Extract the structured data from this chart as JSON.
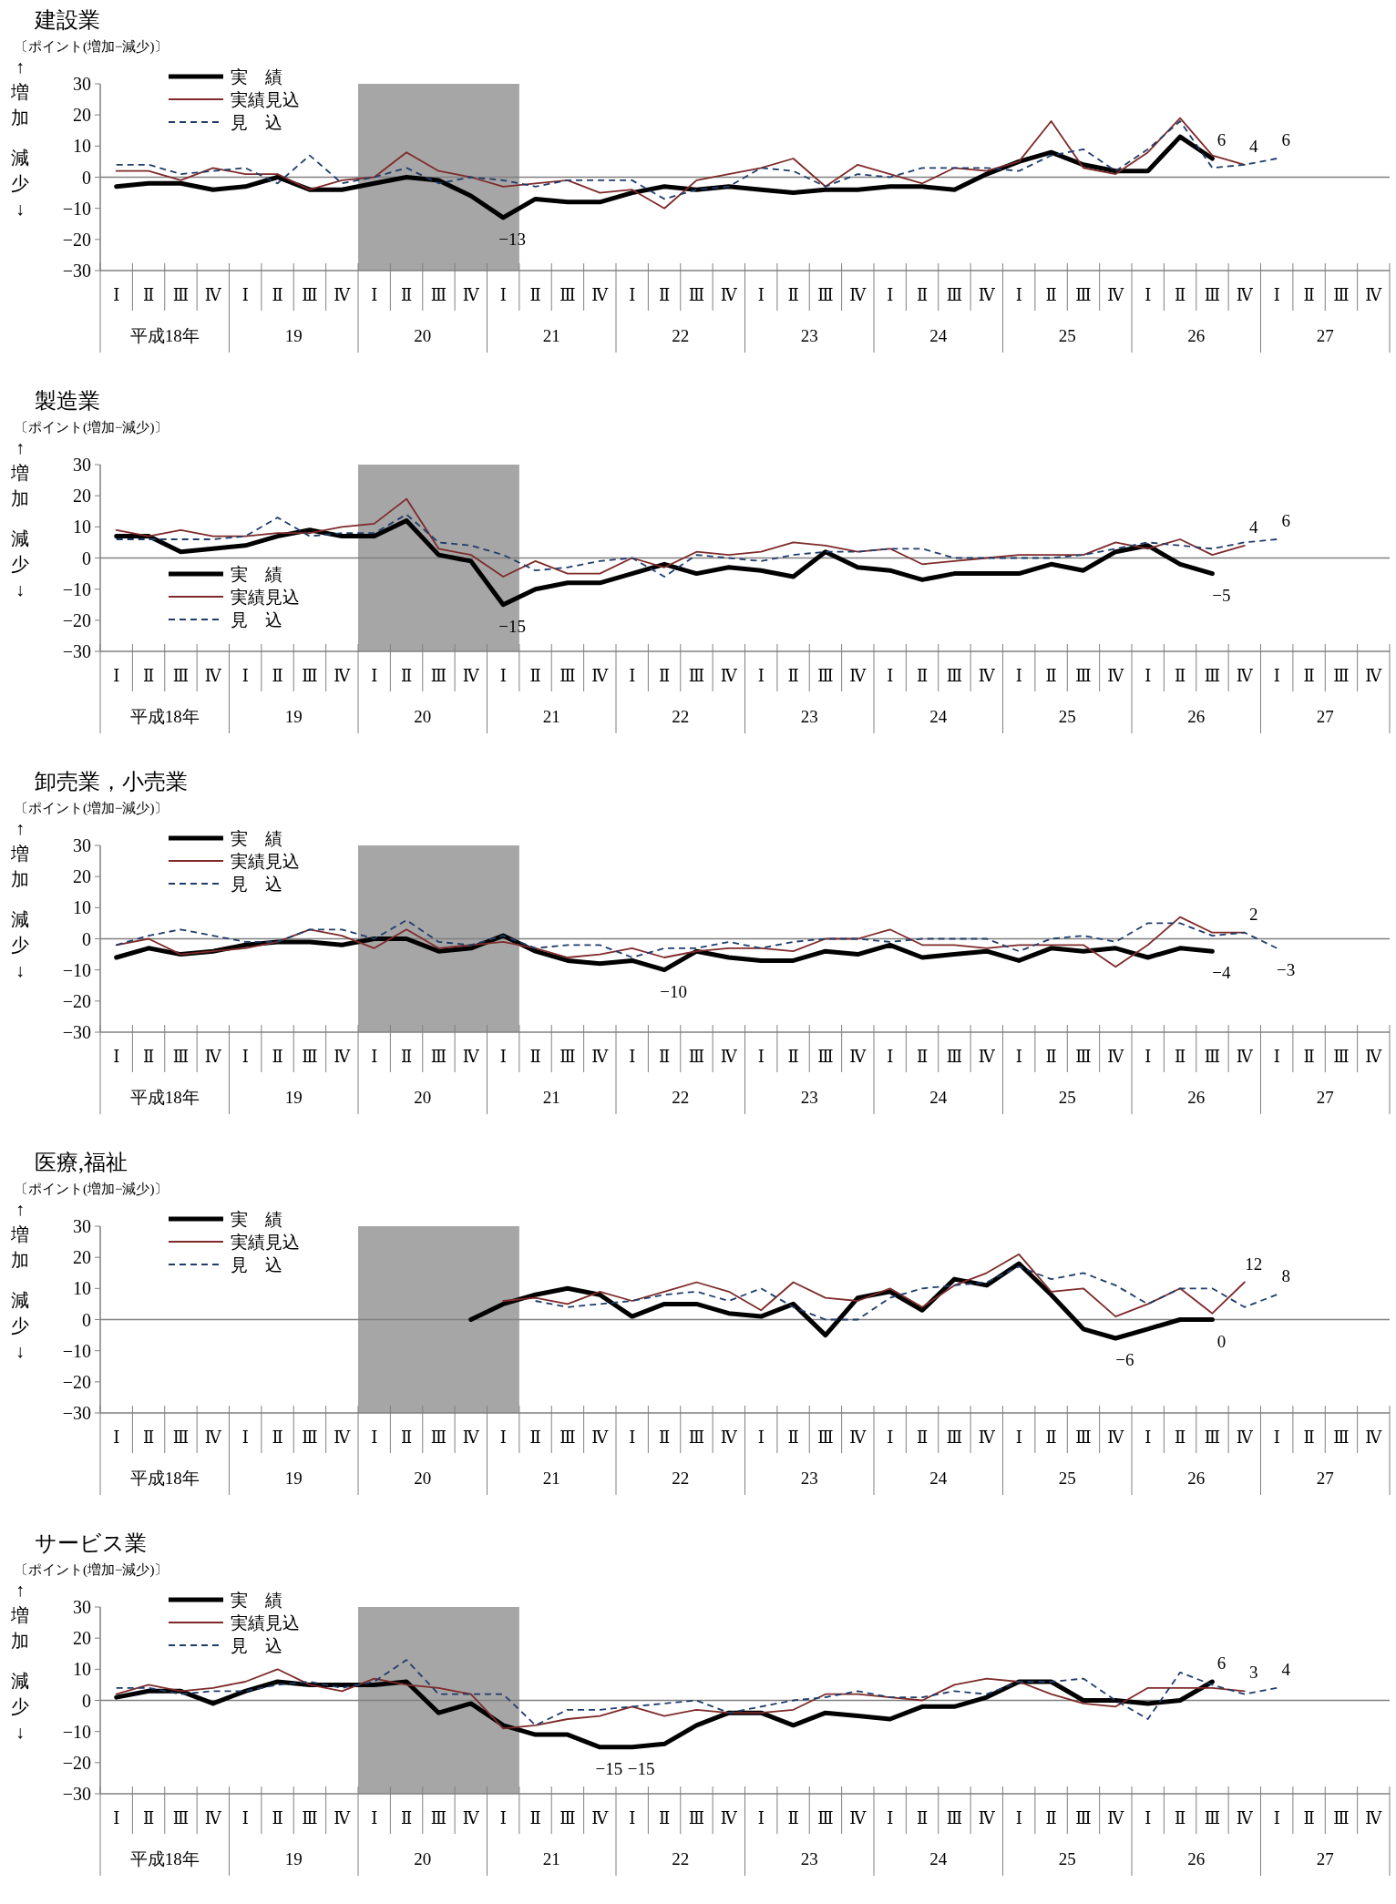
{
  "chart_data": [
    {
      "type": "line",
      "title": "建設業",
      "subtitle": "〔ポイント(増加−減少)〕",
      "categories": [
        "Ⅰ",
        "Ⅱ",
        "Ⅲ",
        "Ⅳ",
        "Ⅰ",
        "Ⅱ",
        "Ⅲ",
        "Ⅳ",
        "Ⅰ",
        "Ⅱ",
        "Ⅲ",
        "Ⅳ",
        "Ⅰ",
        "Ⅱ",
        "Ⅲ",
        "Ⅳ",
        "Ⅰ",
        "Ⅱ",
        "Ⅲ",
        "Ⅳ",
        "Ⅰ",
        "Ⅱ",
        "Ⅲ",
        "Ⅳ",
        "Ⅰ",
        "Ⅱ",
        "Ⅲ",
        "Ⅳ",
        "Ⅰ",
        "Ⅱ",
        "Ⅲ",
        "Ⅳ",
        "Ⅰ",
        "Ⅱ",
        "Ⅲ",
        "Ⅳ",
        "Ⅰ",
        "Ⅱ",
        "Ⅲ",
        "Ⅳ"
      ],
      "ylim": [
        -30,
        30
      ],
      "yticks": [
        -30,
        -20,
        -10,
        0,
        10,
        20,
        30
      ],
      "grid": false,
      "legend": "top left",
      "marker": "none",
      "annotations": [
        "↑増加",
        "減少↓",
        "平成18年",
        "19",
        "20",
        "21",
        "22",
        "23",
        "24",
        "25",
        "26",
        "27"
      ],
      "ref_lines": [
        {
          "axis": "y",
          "value": 0,
          "color": "#808080"
        }
      ],
      "series": [
        {
          "name": "実　績",
          "color": "#000000",
          "line_style": "solid",
          "values": [
            -3,
            -2,
            -2,
            -4,
            -3,
            0,
            -4,
            -4,
            -2,
            0,
            -1,
            -6,
            -13,
            -7,
            -8,
            -8,
            -5,
            -3,
            -4,
            -3,
            -4,
            -5,
            -4,
            -4,
            -3,
            -3,
            -4,
            1,
            5,
            8,
            4,
            2,
            2,
            13,
            6,
            null,
            null,
            null,
            null,
            null
          ],
          "value_labels": [
            null,
            null,
            null,
            null,
            null,
            null,
            null,
            null,
            null,
            null,
            null,
            null,
            "−13",
            null,
            null,
            null,
            null,
            null,
            null,
            null,
            null,
            null,
            null,
            null,
            null,
            null,
            null,
            null,
            null,
            null,
            null,
            null,
            null,
            null,
            "6",
            null,
            null,
            null,
            null,
            null
          ]
        },
        {
          "name": "実績見込",
          "color": "#7f2a2a",
          "line_style": "solid",
          "values": [
            2,
            2,
            -1,
            3,
            1,
            1,
            -4,
            -1,
            0,
            8,
            2,
            0,
            -3,
            -2,
            -1,
            -5,
            -4,
            -10,
            -1,
            1,
            3,
            6,
            -3,
            4,
            1,
            -2,
            3,
            2,
            5,
            18,
            3,
            1,
            8,
            19,
            7,
            4,
            null,
            null,
            null,
            null
          ],
          "value_labels": [
            null,
            null,
            null,
            null,
            null,
            null,
            null,
            null,
            null,
            null,
            null,
            null,
            null,
            null,
            null,
            null,
            null,
            null,
            null,
            null,
            null,
            null,
            null,
            null,
            null,
            null,
            null,
            null,
            null,
            null,
            null,
            null,
            null,
            null,
            null,
            "4",
            null,
            null,
            null,
            null
          ]
        },
        {
          "name": "見　込",
          "color": "#1f3d6b",
          "line_style": "dashed",
          "values": [
            4,
            4,
            1,
            2,
            3,
            -2,
            7,
            -2,
            0,
            3,
            -2,
            0,
            -1,
            -3,
            -1,
            -1,
            -1,
            -7,
            -4,
            -3,
            3,
            2,
            -3,
            1,
            0,
            3,
            3,
            3,
            2,
            7,
            9,
            2,
            9,
            18,
            3,
            4,
            6,
            null,
            null,
            null
          ],
          "value_labels": [
            null,
            null,
            null,
            null,
            null,
            null,
            null,
            null,
            null,
            null,
            null,
            null,
            null,
            null,
            null,
            null,
            null,
            null,
            null,
            null,
            null,
            null,
            null,
            null,
            null,
            null,
            null,
            null,
            null,
            null,
            null,
            null,
            null,
            null,
            null,
            null,
            "6",
            null,
            null,
            null
          ]
        }
      ]
    },
    {
      "type": "line",
      "title": "製造業",
      "subtitle": "〔ポイント(増加−減少)〕",
      "categories": [
        "Ⅰ",
        "Ⅱ",
        "Ⅲ",
        "Ⅳ",
        "Ⅰ",
        "Ⅱ",
        "Ⅲ",
        "Ⅳ",
        "Ⅰ",
        "Ⅱ",
        "Ⅲ",
        "Ⅳ",
        "Ⅰ",
        "Ⅱ",
        "Ⅲ",
        "Ⅳ",
        "Ⅰ",
        "Ⅱ",
        "Ⅲ",
        "Ⅳ",
        "Ⅰ",
        "Ⅱ",
        "Ⅲ",
        "Ⅳ",
        "Ⅰ",
        "Ⅱ",
        "Ⅲ",
        "Ⅳ",
        "Ⅰ",
        "Ⅱ",
        "Ⅲ",
        "Ⅳ",
        "Ⅰ",
        "Ⅱ",
        "Ⅲ",
        "Ⅳ",
        "Ⅰ",
        "Ⅱ",
        "Ⅲ",
        "Ⅳ"
      ],
      "ylim": [
        -30,
        30
      ],
      "yticks": [
        -30,
        -20,
        -10,
        0,
        10,
        20,
        30
      ],
      "grid": false,
      "legend": "bottom left",
      "marker": "none",
      "annotations": [
        "↑増加",
        "減少↓",
        "平成18年",
        "19",
        "20",
        "21",
        "22",
        "23",
        "24",
        "25",
        "26",
        "27"
      ],
      "ref_lines": [
        {
          "axis": "y",
          "value": 0,
          "color": "#808080"
        }
      ],
      "series": [
        {
          "name": "実　績",
          "color": "#000000",
          "line_style": "solid",
          "values": [
            7,
            7,
            2,
            3,
            4,
            7,
            9,
            7,
            7,
            12,
            1,
            -1,
            -15,
            -10,
            -8,
            -8,
            -5,
            -2,
            -5,
            -3,
            -4,
            -6,
            2,
            -3,
            -4,
            -7,
            -5,
            -5,
            -5,
            -2,
            -4,
            2,
            4,
            -2,
            -5,
            null,
            null,
            null,
            null,
            null
          ],
          "value_labels": [
            null,
            null,
            null,
            null,
            null,
            null,
            null,
            null,
            null,
            null,
            null,
            null,
            "−15",
            null,
            null,
            null,
            null,
            null,
            null,
            null,
            null,
            null,
            null,
            null,
            null,
            null,
            null,
            null,
            null,
            null,
            null,
            null,
            null,
            null,
            "−5",
            null,
            null,
            null,
            null,
            null
          ]
        },
        {
          "name": "実績見込",
          "color": "#7f2a2a",
          "line_style": "solid",
          "values": [
            9,
            7,
            9,
            7,
            7,
            8,
            8,
            10,
            11,
            19,
            3,
            1,
            -6,
            -1,
            -5,
            -5,
            0,
            -3,
            2,
            1,
            2,
            5,
            4,
            2,
            3,
            -2,
            -1,
            0,
            1,
            1,
            1,
            5,
            3,
            6,
            1,
            4,
            null,
            null,
            null,
            null
          ],
          "value_labels": [
            null,
            null,
            null,
            null,
            null,
            null,
            null,
            null,
            null,
            null,
            null,
            null,
            null,
            null,
            null,
            null,
            null,
            null,
            null,
            null,
            null,
            null,
            null,
            null,
            null,
            null,
            null,
            null,
            null,
            null,
            null,
            null,
            null,
            null,
            null,
            "4",
            null,
            null,
            null,
            null
          ]
        },
        {
          "name": "見　込",
          "color": "#1f3d6b",
          "line_style": "dashed",
          "values": [
            6,
            6,
            6,
            6,
            7,
            13,
            7,
            8,
            8,
            14,
            5,
            4,
            1,
            -4,
            -3,
            -1,
            0,
            -6,
            1,
            0,
            -1,
            1,
            2,
            2,
            3,
            3,
            0,
            0,
            0,
            0,
            1,
            3,
            5,
            4,
            3,
            5,
            6,
            null,
            null,
            null
          ],
          "value_labels": [
            null,
            null,
            null,
            null,
            null,
            null,
            null,
            null,
            null,
            null,
            null,
            null,
            null,
            null,
            null,
            null,
            null,
            null,
            null,
            null,
            null,
            null,
            null,
            null,
            null,
            null,
            null,
            null,
            null,
            null,
            null,
            null,
            null,
            null,
            null,
            null,
            "6",
            null,
            null,
            null
          ]
        }
      ]
    },
    {
      "type": "line",
      "title": "卸売業，小売業",
      "subtitle": "〔ポイント(増加−減少)〕",
      "categories": [
        "Ⅰ",
        "Ⅱ",
        "Ⅲ",
        "Ⅳ",
        "Ⅰ",
        "Ⅱ",
        "Ⅲ",
        "Ⅳ",
        "Ⅰ",
        "Ⅱ",
        "Ⅲ",
        "Ⅳ",
        "Ⅰ",
        "Ⅱ",
        "Ⅲ",
        "Ⅳ",
        "Ⅰ",
        "Ⅱ",
        "Ⅲ",
        "Ⅳ",
        "Ⅰ",
        "Ⅱ",
        "Ⅲ",
        "Ⅳ",
        "Ⅰ",
        "Ⅱ",
        "Ⅲ",
        "Ⅳ",
        "Ⅰ",
        "Ⅱ",
        "Ⅲ",
        "Ⅳ",
        "Ⅰ",
        "Ⅱ",
        "Ⅲ",
        "Ⅳ",
        "Ⅰ",
        "Ⅱ",
        "Ⅲ",
        "Ⅳ"
      ],
      "ylim": [
        -30,
        30
      ],
      "yticks": [
        -30,
        -20,
        -10,
        0,
        10,
        20,
        30
      ],
      "grid": false,
      "legend": "top left",
      "marker": "none",
      "annotations": [
        "↑増加",
        "減少↓",
        "平成18年",
        "19",
        "20",
        "21",
        "22",
        "23",
        "24",
        "25",
        "26",
        "27"
      ],
      "ref_lines": [
        {
          "axis": "y",
          "value": 0,
          "color": "#808080"
        }
      ],
      "series": [
        {
          "name": "実　績",
          "color": "#000000",
          "line_style": "solid",
          "values": [
            -6,
            -3,
            -5,
            -4,
            -2,
            -1,
            -1,
            -2,
            0,
            0,
            -4,
            -3,
            1,
            -4,
            -7,
            -8,
            -7,
            -10,
            -4,
            -6,
            -7,
            -7,
            -4,
            -5,
            -2,
            -6,
            -5,
            -4,
            -7,
            -3,
            -4,
            -3,
            -6,
            -3,
            -4,
            null,
            null,
            null,
            null,
            null
          ],
          "value_labels": [
            null,
            null,
            null,
            null,
            null,
            null,
            null,
            null,
            null,
            null,
            null,
            null,
            null,
            null,
            null,
            null,
            null,
            "−10",
            null,
            null,
            null,
            null,
            null,
            null,
            null,
            null,
            null,
            null,
            null,
            null,
            null,
            null,
            null,
            null,
            "−4",
            null,
            null,
            null,
            null,
            null
          ]
        },
        {
          "name": "実績見込",
          "color": "#7f2a2a",
          "line_style": "solid",
          "values": [
            -2,
            0,
            -5,
            -4,
            -3,
            -1,
            3,
            1,
            -3,
            3,
            -3,
            -2,
            -1,
            -3,
            -6,
            -5,
            -3,
            -6,
            -4,
            -3,
            -3,
            -4,
            0,
            0,
            3,
            -2,
            -2,
            -3,
            -2,
            -2,
            -2,
            -9,
            -2,
            7,
            2,
            2,
            null,
            null,
            null,
            null
          ],
          "value_labels": [
            null,
            null,
            null,
            null,
            null,
            null,
            null,
            null,
            null,
            null,
            null,
            null,
            null,
            null,
            null,
            null,
            null,
            null,
            null,
            null,
            null,
            null,
            null,
            null,
            null,
            null,
            null,
            null,
            null,
            null,
            null,
            null,
            null,
            null,
            null,
            "2",
            null,
            null,
            null,
            null
          ]
        },
        {
          "name": "見　込",
          "color": "#1f3d6b",
          "line_style": "dashed",
          "values": [
            -2,
            1,
            3,
            1,
            -1,
            -1,
            3,
            3,
            0,
            6,
            -1,
            -2,
            1,
            -3,
            -2,
            -2,
            -6,
            -3,
            -3,
            -1,
            -3,
            -1,
            0,
            0,
            -1,
            0,
            0,
            0,
            -4,
            0,
            1,
            -1,
            5,
            5,
            1,
            2,
            -3,
            null,
            null,
            null
          ],
          "value_labels": [
            null,
            null,
            null,
            null,
            null,
            null,
            null,
            null,
            null,
            null,
            null,
            null,
            null,
            null,
            null,
            null,
            null,
            null,
            null,
            null,
            null,
            null,
            null,
            null,
            null,
            null,
            null,
            null,
            null,
            null,
            null,
            null,
            null,
            null,
            null,
            null,
            "−3",
            null,
            null,
            null
          ]
        }
      ]
    },
    {
      "type": "line",
      "title": "医療,福祉",
      "subtitle": "〔ポイント(増加−減少)〕",
      "categories": [
        "Ⅰ",
        "Ⅱ",
        "Ⅲ",
        "Ⅳ",
        "Ⅰ",
        "Ⅱ",
        "Ⅲ",
        "Ⅳ",
        "Ⅰ",
        "Ⅱ",
        "Ⅲ",
        "Ⅳ",
        "Ⅰ",
        "Ⅱ",
        "Ⅲ",
        "Ⅳ",
        "Ⅰ",
        "Ⅱ",
        "Ⅲ",
        "Ⅳ",
        "Ⅰ",
        "Ⅱ",
        "Ⅲ",
        "Ⅳ",
        "Ⅰ",
        "Ⅱ",
        "Ⅲ",
        "Ⅳ",
        "Ⅰ",
        "Ⅱ",
        "Ⅲ",
        "Ⅳ",
        "Ⅰ",
        "Ⅱ",
        "Ⅲ",
        "Ⅳ",
        "Ⅰ",
        "Ⅱ",
        "Ⅲ",
        "Ⅳ"
      ],
      "ylim": [
        -30,
        30
      ],
      "yticks": [
        -30,
        -20,
        -10,
        0,
        10,
        20,
        30
      ],
      "grid": false,
      "legend": "top left",
      "marker": "none",
      "annotations": [
        "↑増加",
        "減少↓",
        "平成18年",
        "19",
        "20",
        "21",
        "22",
        "23",
        "24",
        "25",
        "26",
        "27"
      ],
      "ref_lines": [
        {
          "axis": "y",
          "value": 0,
          "color": "#808080"
        }
      ],
      "series": [
        {
          "name": "実　績",
          "color": "#000000",
          "line_style": "solid",
          "values": [
            null,
            null,
            null,
            null,
            null,
            null,
            null,
            null,
            null,
            null,
            null,
            0,
            5,
            8,
            10,
            8,
            1,
            5,
            5,
            2,
            1,
            5,
            -5,
            7,
            9,
            3,
            13,
            11,
            18,
            8,
            -3,
            -6,
            -3,
            0,
            0,
            null,
            null,
            null,
            null,
            null
          ],
          "value_labels": [
            null,
            null,
            null,
            null,
            null,
            null,
            null,
            null,
            null,
            null,
            null,
            null,
            null,
            null,
            null,
            null,
            null,
            null,
            null,
            null,
            null,
            null,
            null,
            null,
            null,
            null,
            null,
            null,
            null,
            null,
            null,
            "−6",
            null,
            null,
            "0",
            null,
            null,
            null,
            null,
            null
          ]
        },
        {
          "name": "実績見込",
          "color": "#7f2a2a",
          "line_style": "solid",
          "values": [
            null,
            null,
            null,
            null,
            null,
            null,
            null,
            null,
            null,
            null,
            null,
            null,
            6,
            7,
            5,
            9,
            6,
            9,
            12,
            9,
            3,
            12,
            7,
            6,
            10,
            4,
            11,
            15,
            21,
            9,
            10,
            1,
            5,
            10,
            2,
            12,
            null,
            null,
            null,
            null
          ],
          "value_labels": [
            null,
            null,
            null,
            null,
            null,
            null,
            null,
            null,
            null,
            null,
            null,
            null,
            null,
            null,
            null,
            null,
            null,
            null,
            null,
            null,
            null,
            null,
            null,
            null,
            null,
            null,
            null,
            null,
            null,
            null,
            null,
            null,
            null,
            null,
            null,
            "12",
            null,
            null,
            null,
            null
          ]
        },
        {
          "name": "見　込",
          "color": "#1f3d6b",
          "line_style": "dashed",
          "values": [
            null,
            null,
            null,
            null,
            null,
            null,
            null,
            null,
            null,
            null,
            null,
            null,
            null,
            6,
            4,
            5,
            6,
            8,
            9,
            6,
            10,
            4,
            0,
            0,
            7,
            10,
            11,
            12,
            17,
            13,
            15,
            11,
            5,
            10,
            10,
            4,
            8,
            null,
            null,
            null
          ],
          "value_labels": [
            null,
            null,
            null,
            null,
            null,
            null,
            null,
            null,
            null,
            null,
            null,
            null,
            null,
            null,
            null,
            null,
            null,
            null,
            null,
            null,
            null,
            null,
            null,
            null,
            null,
            null,
            null,
            null,
            null,
            null,
            null,
            null,
            null,
            null,
            null,
            null,
            "8",
            null,
            null,
            null
          ]
        }
      ]
    },
    {
      "type": "line",
      "title": "サービス業",
      "subtitle": "〔ポイント(増加−減少)〕",
      "categories": [
        "Ⅰ",
        "Ⅱ",
        "Ⅲ",
        "Ⅳ",
        "Ⅰ",
        "Ⅱ",
        "Ⅲ",
        "Ⅳ",
        "Ⅰ",
        "Ⅱ",
        "Ⅲ",
        "Ⅳ",
        "Ⅰ",
        "Ⅱ",
        "Ⅲ",
        "Ⅳ",
        "Ⅰ",
        "Ⅱ",
        "Ⅲ",
        "Ⅳ",
        "Ⅰ",
        "Ⅱ",
        "Ⅲ",
        "Ⅳ",
        "Ⅰ",
        "Ⅱ",
        "Ⅲ",
        "Ⅳ",
        "Ⅰ",
        "Ⅱ",
        "Ⅲ",
        "Ⅳ",
        "Ⅰ",
        "Ⅱ",
        "Ⅲ",
        "Ⅳ",
        "Ⅰ",
        "Ⅱ",
        "Ⅲ",
        "Ⅳ"
      ],
      "ylim": [
        -30,
        30
      ],
      "yticks": [
        -30,
        -20,
        -10,
        0,
        10,
        20,
        30
      ],
      "grid": false,
      "legend": "top left",
      "marker": "none",
      "annotations": [
        "↑増加",
        "減少↓",
        "平成18年",
        "19",
        "20",
        "21",
        "22",
        "23",
        "24",
        "25",
        "26",
        "27"
      ],
      "ref_lines": [
        {
          "axis": "y",
          "value": 0,
          "color": "#808080"
        }
      ],
      "series": [
        {
          "name": "実　績",
          "color": "#000000",
          "line_style": "solid",
          "values": [
            1,
            3,
            3,
            -1,
            3,
            6,
            5,
            5,
            5,
            6,
            -4,
            -1,
            -8,
            -11,
            -11,
            -15,
            -15,
            -14,
            -8,
            -4,
            -4,
            -8,
            -4,
            -5,
            -6,
            -2,
            -2,
            1,
            6,
            6,
            0,
            0,
            -1,
            0,
            6,
            null,
            null,
            null,
            null,
            null
          ],
          "value_labels": [
            null,
            null,
            null,
            null,
            null,
            null,
            null,
            null,
            null,
            null,
            null,
            null,
            null,
            null,
            null,
            "−15",
            "−15",
            null,
            null,
            null,
            null,
            null,
            null,
            null,
            null,
            null,
            null,
            null,
            null,
            null,
            null,
            null,
            null,
            null,
            "6",
            null,
            null,
            null,
            null,
            null
          ]
        },
        {
          "name": "実績見込",
          "color": "#7f2a2a",
          "line_style": "solid",
          "values": [
            2,
            5,
            3,
            4,
            6,
            10,
            5,
            3,
            7,
            5,
            4,
            2,
            -9,
            -8,
            -6,
            -5,
            -2,
            -5,
            -3,
            -4,
            -4,
            -3,
            2,
            2,
            1,
            0,
            5,
            7,
            6,
            2,
            -1,
            -2,
            4,
            4,
            4,
            3,
            null,
            null,
            null,
            null
          ],
          "value_labels": [
            null,
            null,
            null,
            null,
            null,
            null,
            null,
            null,
            null,
            null,
            null,
            null,
            null,
            null,
            null,
            null,
            null,
            null,
            null,
            null,
            null,
            null,
            null,
            null,
            null,
            null,
            null,
            null,
            null,
            null,
            null,
            null,
            null,
            null,
            null,
            "3",
            null,
            null,
            null,
            null
          ]
        },
        {
          "name": "見　込",
          "color": "#1f3d6b",
          "line_style": "dashed",
          "values": [
            4,
            4,
            2,
            3,
            3,
            5,
            6,
            4,
            6,
            13,
            2,
            2,
            2,
            -8,
            -3,
            -3,
            -2,
            -1,
            0,
            -4,
            -2,
            0,
            1,
            3,
            1,
            1,
            3,
            2,
            6,
            6,
            7,
            0,
            -6,
            9,
            5,
            2,
            4,
            null,
            null,
            null
          ],
          "value_labels": [
            null,
            null,
            null,
            null,
            null,
            null,
            null,
            null,
            null,
            null,
            null,
            null,
            null,
            null,
            null,
            null,
            null,
            null,
            null,
            null,
            null,
            null,
            null,
            null,
            null,
            null,
            null,
            null,
            null,
            null,
            null,
            null,
            null,
            null,
            null,
            null,
            "4",
            null,
            null,
            null
          ]
        }
      ]
    }
  ]
}
